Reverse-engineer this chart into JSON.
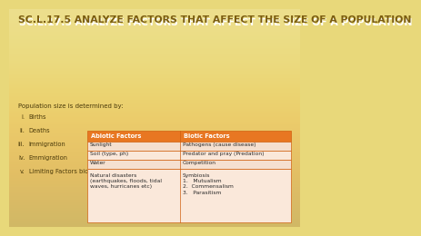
{
  "title": "SC.L.17.5 ANALYZE FACTORS THAT AFFECT THE SIZE OF A POPULATION",
  "title_color": "#7a5c10",
  "title_shadow_color": "#ffffff",
  "title_fontsize": 7.8,
  "bg_color_top": "#E8D87A",
  "bg_color_bottom": "#C8B84A",
  "subtitle": "Population size is determined by:",
  "subtitle_fontsize": 5.0,
  "list_items": [
    [
      "i.",
      "Births"
    ],
    [
      "ii.",
      "Deaths"
    ],
    [
      "iii.",
      "Immigration"
    ],
    [
      "iv.",
      "Emmigration"
    ],
    [
      "v.",
      "Limiting Factors biotics and abiotics"
    ]
  ],
  "list_fontsize": 4.8,
  "list_color": "#4a3a0a",
  "table_header_bg": "#E87722",
  "table_row_bg_1": "#F5E0D0",
  "table_row_bg_2": "#FAE8DA",
  "table_border_color": "#D06010",
  "col_headers": [
    "Abiotic Factors",
    "Biotic Factors"
  ],
  "rows": [
    [
      "Sunlight",
      "Pathogens (cause disease)"
    ],
    [
      "Soil (type, ph)",
      "Predator and pray (Predation)"
    ],
    [
      "Water",
      "Competition"
    ],
    [
      "Natural disasters\n(earthquakes, floods, tidal\nwaves, hurricanes etc)",
      "Symbiosis\n1.   Mutualism\n2.  Commensalism\n3.   Parasitism"
    ]
  ],
  "table_fontsize": 4.3,
  "header_fontsize": 4.8
}
